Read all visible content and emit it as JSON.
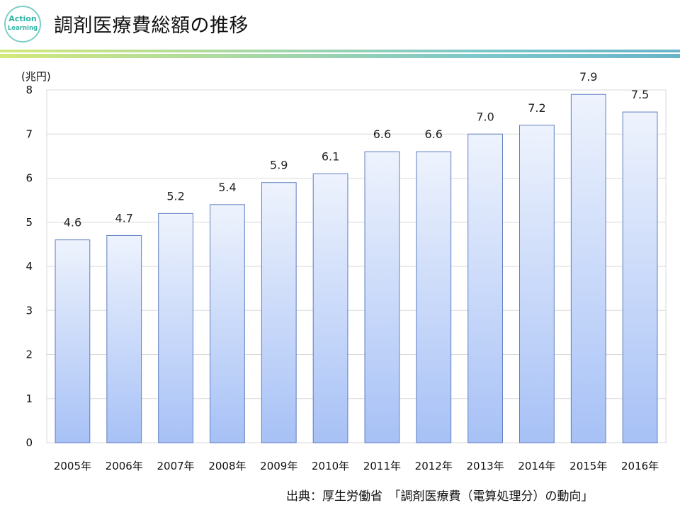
{
  "header": {
    "title": "調剤医療費総額の推移",
    "logo_line1": "Action",
    "logo_line2": "Learning"
  },
  "colors": {
    "bar_top": "#eef3fd",
    "bar_bottom": "#a7c1f6",
    "bar_border": "#5f7ec0",
    "grid": "#d9d9d9"
  },
  "chart_data": {
    "type": "bar",
    "title": "",
    "ylabel": "(兆円)",
    "xlabel": "",
    "categories": [
      "2005年",
      "2006年",
      "2007年",
      "2008年",
      "2009年",
      "2010年",
      "2011年",
      "2012年",
      "2013年",
      "2014年",
      "2015年",
      "2016年"
    ],
    "values": [
      4.6,
      4.7,
      5.2,
      5.4,
      5.9,
      6.1,
      6.6,
      6.6,
      7.0,
      7.2,
      7.9,
      7.5
    ],
    "data_labels": [
      "4.6",
      "4.7",
      "5.2",
      "5.4",
      "5.9",
      "6.1",
      "6.6",
      "6.6",
      "7.0",
      "7.2",
      "7.9",
      "7.5"
    ],
    "ylim": [
      0,
      8
    ],
    "yticks": [
      0,
      1,
      2,
      3,
      4,
      5,
      6,
      7,
      8
    ],
    "grid": true
  },
  "source": "出典：厚生労働省　「調剤医療費（電算処理分）の動向」"
}
